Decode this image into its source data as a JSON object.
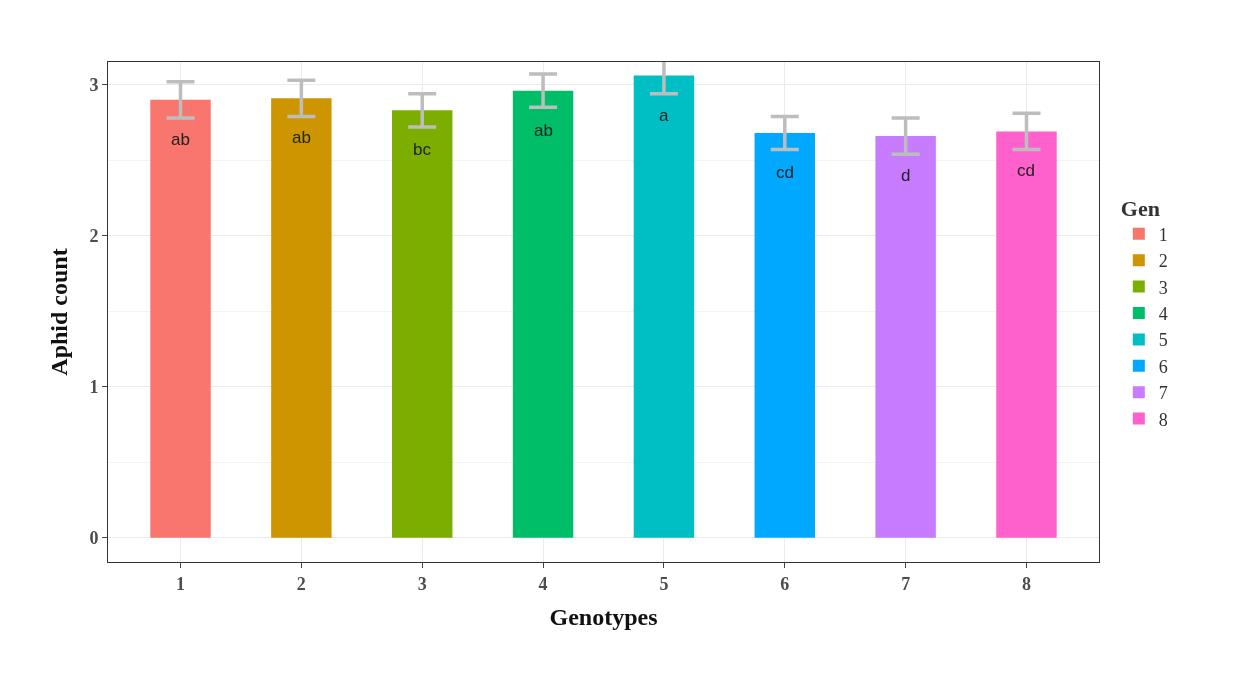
{
  "chart_data": {
    "type": "bar",
    "xlabel": "Genotypes",
    "ylabel": "Aphid count",
    "legend_title": "Gen",
    "categories": [
      "1",
      "2",
      "3",
      "4",
      "5",
      "6",
      "7",
      "8"
    ],
    "series": [
      {
        "name": "1",
        "color": "#f8766d",
        "values": [
          2.9,
          null,
          null,
          null,
          null,
          null,
          null,
          null
        ],
        "errors": [
          0.12,
          null,
          null,
          null,
          null,
          null,
          null,
          null
        ]
      },
      {
        "name": "2",
        "color": "#cd9600",
        "values": [
          null,
          2.91,
          null,
          null,
          null,
          null,
          null,
          null
        ],
        "errors": [
          null,
          0.12,
          null,
          null,
          null,
          null,
          null,
          null
        ]
      },
      {
        "name": "3",
        "color": "#7cae00",
        "values": [
          null,
          null,
          2.83,
          null,
          null,
          null,
          null,
          null
        ],
        "errors": [
          null,
          null,
          0.11,
          null,
          null,
          null,
          null,
          null
        ]
      },
      {
        "name": "4",
        "color": "#00be67",
        "values": [
          null,
          null,
          null,
          2.96,
          null,
          null,
          null,
          null
        ],
        "errors": [
          null,
          null,
          null,
          0.11,
          null,
          null,
          null,
          null
        ]
      },
      {
        "name": "5",
        "color": "#00bfc4",
        "values": [
          null,
          null,
          null,
          null,
          3.06,
          null,
          null,
          null
        ],
        "errors": [
          null,
          null,
          null,
          null,
          0.12,
          null,
          null,
          null
        ]
      },
      {
        "name": "6",
        "color": "#00a9ff",
        "values": [
          null,
          null,
          null,
          null,
          null,
          2.68,
          null,
          null
        ],
        "errors": [
          null,
          null,
          null,
          null,
          null,
          0.11,
          null,
          null
        ]
      },
      {
        "name": "7",
        "color": "#c77cff",
        "values": [
          null,
          null,
          null,
          null,
          null,
          null,
          2.66,
          null
        ],
        "errors": [
          null,
          null,
          null,
          null,
          null,
          null,
          0.12,
          null
        ]
      },
      {
        "name": "8",
        "color": "#ff61cc",
        "values": [
          null,
          null,
          null,
          null,
          null,
          null,
          null,
          2.69
        ],
        "errors": [
          null,
          null,
          null,
          null,
          null,
          null,
          null,
          0.12
        ]
      }
    ],
    "ylim": [
      -0.16,
      3.15
    ],
    "yticks": [
      0,
      1,
      2,
      3
    ],
    "grid": true,
    "legend": "right",
    "annotations": [
      {
        "text": "ab",
        "x": "1",
        "y": 2.9
      },
      {
        "text": "ab",
        "x": "2",
        "y": 2.91
      },
      {
        "text": "bc",
        "x": "3",
        "y": 2.83
      },
      {
        "text": "ab",
        "x": "4",
        "y": 2.96
      },
      {
        "text": "a",
        "x": "5",
        "y": 3.06
      },
      {
        "text": "cd",
        "x": "6",
        "y": 2.68
      },
      {
        "text": "d",
        "x": "7",
        "y": 2.66
      },
      {
        "text": "cd",
        "x": "8",
        "y": 2.69
      }
    ]
  }
}
